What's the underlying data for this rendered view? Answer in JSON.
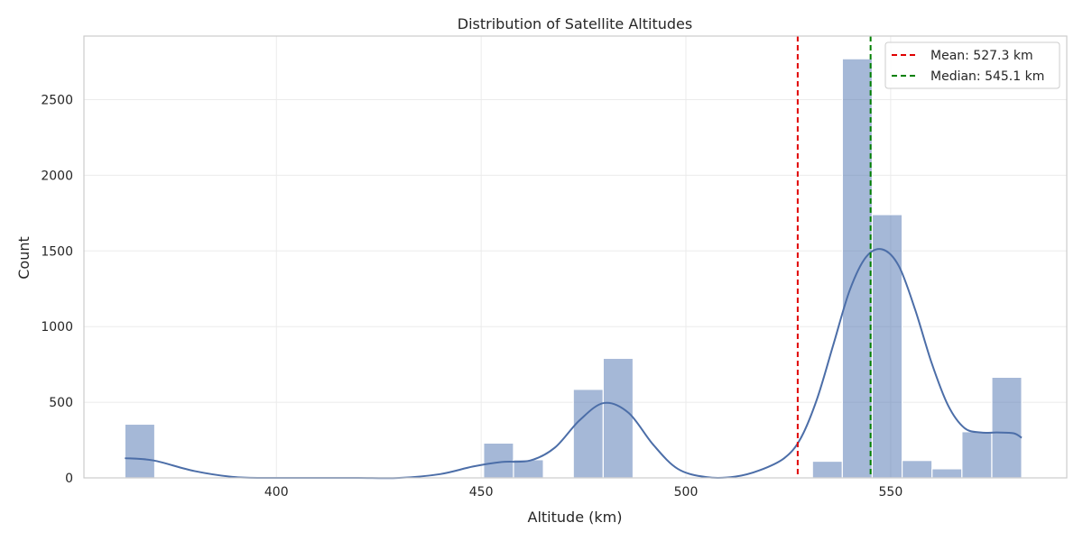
{
  "chart_data": {
    "type": "bar",
    "title": "Distribution of Satellite Altitudes",
    "xlabel": "Altitude (km)",
    "ylabel": "Count",
    "xlim": [
      353,
      593
    ],
    "ylim": [
      0,
      2920
    ],
    "x_ticks": [
      400,
      450,
      500,
      550
    ],
    "x_tick_labels": [
      "400",
      "450",
      "500",
      "550"
    ],
    "y_ticks": [
      0,
      500,
      1000,
      1500,
      2000,
      2500
    ],
    "y_tick_labels": [
      "0",
      "500",
      "1000",
      "1500",
      "2000",
      "2500"
    ],
    "grid": true,
    "legend_placement": "top-right",
    "bin_edges": [
      363,
      370.3,
      377.6,
      384.9,
      392.2,
      399.5,
      406.8,
      414.1,
      421.4,
      428.7,
      436,
      443.3,
      450.6,
      457.9,
      465.2,
      472.5,
      479.8,
      487.1,
      494.4,
      501.7,
      509,
      516.3,
      523.6,
      530.9,
      538.2,
      545.5,
      552.8,
      560.1,
      567.4,
      574.7,
      582
    ],
    "counts": [
      355,
      0,
      0,
      0,
      0,
      0,
      0,
      0,
      0,
      0,
      0,
      0,
      230,
      120,
      0,
      585,
      790,
      0,
      0,
      0,
      0,
      0,
      0,
      110,
      2770,
      1740,
      115,
      60,
      305,
      665
    ],
    "kde": {
      "x": [
        363,
        370,
        380,
        390,
        400,
        410,
        420,
        430,
        440,
        448,
        455,
        462,
        468,
        474,
        480,
        486,
        492,
        498,
        505,
        512,
        518,
        524,
        528,
        532,
        536,
        540,
        544,
        548,
        552,
        556,
        560,
        564,
        568,
        572,
        576,
        580,
        582
      ],
      "y": [
        130,
        115,
        45,
        5,
        0,
        0,
        0,
        0,
        25,
        75,
        105,
        115,
        200,
        380,
        495,
        430,
        220,
        60,
        5,
        8,
        50,
        130,
        260,
        520,
        880,
        1240,
        1460,
        1510,
        1400,
        1110,
        760,
        480,
        330,
        300,
        300,
        295,
        265
      ]
    },
    "reference_lines": [
      {
        "name": "Mean: 527.3 km",
        "value": 527.3,
        "color": "#e00000"
      },
      {
        "name": "Median: 545.1 km",
        "value": 545.1,
        "color": "#008000"
      }
    ],
    "colors": {
      "bar_fill": "#4c72b0",
      "bar_opacity": 0.5,
      "kde_line": "#4c6ea8",
      "grid": "#ebebeb",
      "spine": "#cccccc",
      "text": "#262626"
    }
  }
}
